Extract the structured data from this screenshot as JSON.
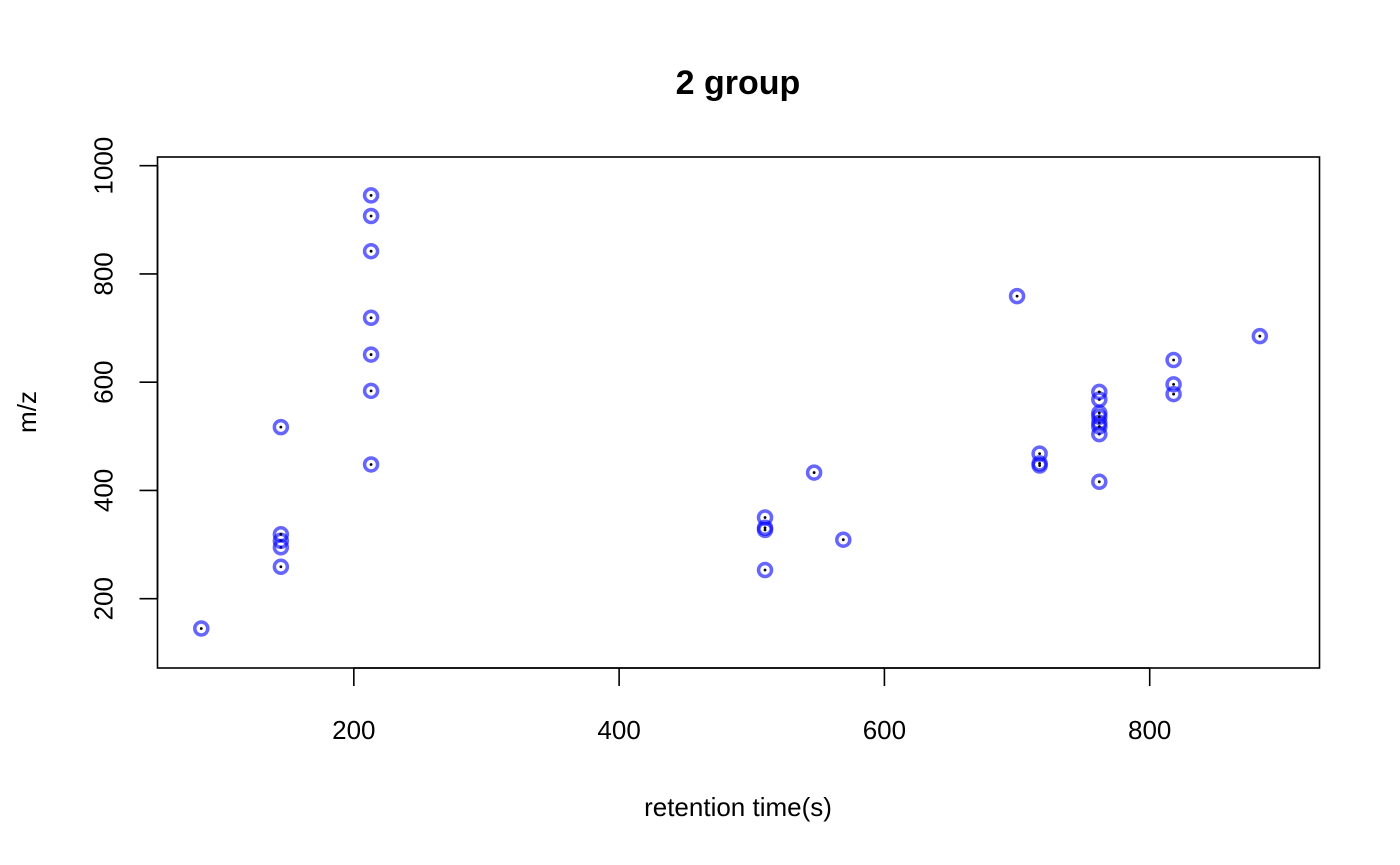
{
  "chart_data": {
    "type": "scatter",
    "title": "2 group",
    "xlabel": "retention time(s)",
    "ylabel": "m/z",
    "xlim": [
      52,
      928
    ],
    "ylim": [
      72,
      1016
    ],
    "xticks": [
      200,
      400,
      600,
      800
    ],
    "yticks": [
      200,
      400,
      600,
      800,
      1000
    ],
    "grid": false,
    "legend": "none",
    "marker_color": "#0000ff",
    "marker_opacity": 0.6,
    "center_dot_color": "#000000",
    "points": [
      {
        "x": 85,
        "y": 145
      },
      {
        "x": 145,
        "y": 259
      },
      {
        "x": 145,
        "y": 295
      },
      {
        "x": 145,
        "y": 307
      },
      {
        "x": 145,
        "y": 319
      },
      {
        "x": 145,
        "y": 517
      },
      {
        "x": 213,
        "y": 448
      },
      {
        "x": 213,
        "y": 584
      },
      {
        "x": 213,
        "y": 651
      },
      {
        "x": 213,
        "y": 719
      },
      {
        "x": 213,
        "y": 842
      },
      {
        "x": 213,
        "y": 907
      },
      {
        "x": 213,
        "y": 945
      },
      {
        "x": 510,
        "y": 253
      },
      {
        "x": 510,
        "y": 327
      },
      {
        "x": 510,
        "y": 331
      },
      {
        "x": 510,
        "y": 350
      },
      {
        "x": 547,
        "y": 433
      },
      {
        "x": 569,
        "y": 309
      },
      {
        "x": 700,
        "y": 759
      },
      {
        "x": 717,
        "y": 446
      },
      {
        "x": 717,
        "y": 450
      },
      {
        "x": 717,
        "y": 468
      },
      {
        "x": 762,
        "y": 416
      },
      {
        "x": 762,
        "y": 504
      },
      {
        "x": 762,
        "y": 518
      },
      {
        "x": 762,
        "y": 525
      },
      {
        "x": 762,
        "y": 536
      },
      {
        "x": 762,
        "y": 543
      },
      {
        "x": 762,
        "y": 568
      },
      {
        "x": 762,
        "y": 582
      },
      {
        "x": 818,
        "y": 578
      },
      {
        "x": 818,
        "y": 596
      },
      {
        "x": 818,
        "y": 641
      },
      {
        "x": 883,
        "y": 685
      }
    ]
  }
}
